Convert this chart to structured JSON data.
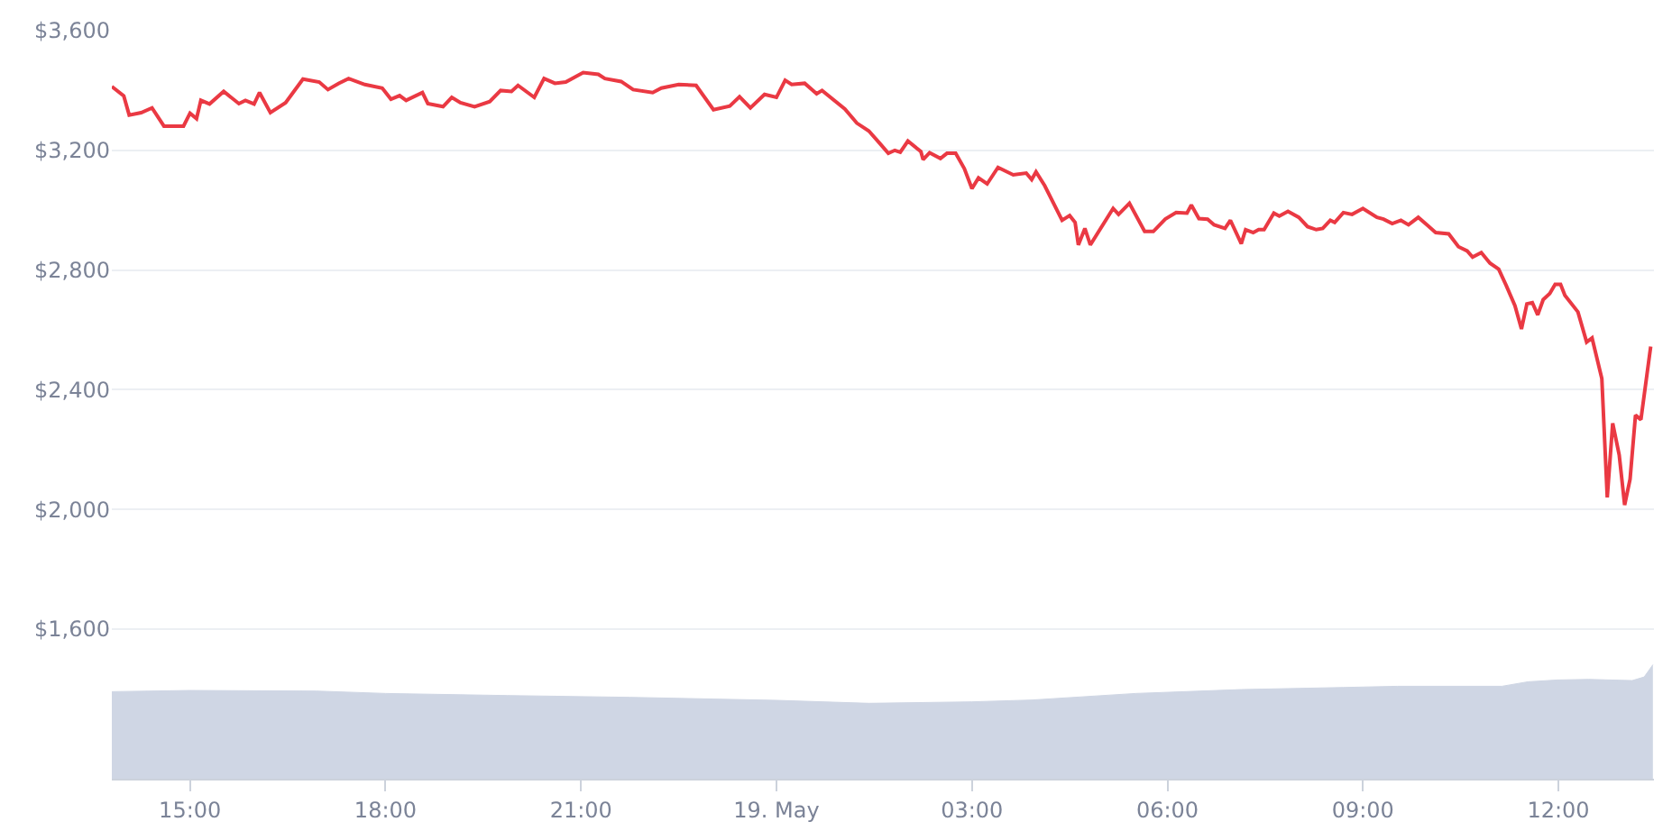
{
  "chart_data": {
    "type": "line",
    "xlim": [
      "--05-18T13:48",
      "--05-19T13:28"
    ],
    "xticks": [
      {
        "value": "--05-18T15:00",
        "label": "15:00"
      },
      {
        "value": "--05-18T18:00",
        "label": "18:00"
      },
      {
        "value": "--05-18T21:00",
        "label": "21:00"
      },
      {
        "value": "--05-19T00:00",
        "label": "19. May"
      },
      {
        "value": "--05-19T03:00",
        "label": "03:00"
      },
      {
        "value": "--05-19T06:00",
        "label": "06:00"
      },
      {
        "value": "--05-19T09:00",
        "label": "09:00"
      },
      {
        "value": "--05-19T12:00",
        "label": "12:00"
      }
    ],
    "ylim": [
      1100,
      3600
    ],
    "yticks": [
      {
        "value": 1600,
        "label": "$1,600"
      },
      {
        "value": 2000,
        "label": "$2,000"
      },
      {
        "value": 2400,
        "label": "$2,400"
      },
      {
        "value": 2800,
        "label": "$2,800"
      },
      {
        "value": 3200,
        "label": "$3,200"
      },
      {
        "value": 3600,
        "label": "$3,600"
      }
    ],
    "grid": "y",
    "marker": "none",
    "line_style": "solid",
    "series": [
      {
        "type": "area",
        "color": "#cfd6e4",
        "x": [
          "--05-18T13:48",
          "--05-18T15:00",
          "--05-18T16:56",
          "--05-18T18:00",
          "--05-18T19:52",
          "--05-18T21:45",
          "--05-19T00:00",
          "--05-19T01:25",
          "--05-19T03:00",
          "--05-19T03:55",
          "--05-19T05:31",
          "--05-19T07:08",
          "--05-19T08:42",
          "--05-19T09:32",
          "--05-19T11:08",
          "--05-19T11:32",
          "--05-19T11:59",
          "--05-19T12:28",
          "--05-19T13:08",
          "--05-19T13:19",
          "--05-19T13:27"
        ],
        "values": [
          1391,
          1395,
          1393,
          1385,
          1378,
          1372,
          1362,
          1352,
          1357,
          1363,
          1385,
          1398,
          1405,
          1409,
          1409,
          1424,
          1430,
          1432,
          1428,
          1440,
          1481
        ]
      },
      {
        "color": "#ea3943",
        "x": [
          "--05-18T13:48",
          "--05-18T13:59",
          "--05-18T14:04",
          "--05-18T14:15",
          "--05-18T14:25",
          "--05-18T14:36",
          "--05-18T14:54",
          "--05-18T15:00",
          "--05-18T15:06",
          "--05-18T15:10",
          "--05-18T15:18",
          "--05-18T15:31",
          "--05-18T15:45",
          "--05-18T15:51",
          "--05-18T15:59",
          "--05-18T16:04",
          "--05-18T16:14",
          "--05-18T16:28",
          "--05-18T16:44",
          "--05-18T16:59",
          "--05-18T17:07",
          "--05-18T17:17",
          "--05-18T17:26",
          "--05-18T17:41",
          "--05-18T17:57",
          "--05-18T18:05",
          "--05-18T18:13",
          "--05-18T18:19",
          "--05-18T18:34",
          "--05-18T18:39",
          "--05-18T18:53",
          "--05-18T19:01",
          "--05-18T19:09",
          "--05-18T19:22",
          "--05-18T19:36",
          "--05-18T19:46",
          "--05-18T19:56",
          "--05-18T20:02",
          "--05-18T20:17",
          "--05-18T20:26",
          "--05-18T20:36",
          "--05-18T20:46",
          "--05-18T21:02",
          "--05-18T21:16",
          "--05-18T21:22",
          "--05-18T21:37",
          "--05-18T21:48",
          "--05-18T22:06",
          "--05-18T22:14",
          "--05-18T22:30",
          "--05-18T22:46",
          "--05-18T23:02",
          "--05-18T23:17",
          "--05-18T23:26",
          "--05-18T23:36",
          "--05-18T23:49",
          "--05-19T00:00",
          "--05-19T00:08",
          "--05-19T00:14",
          "--05-19T00:26",
          "--05-19T00:37",
          "--05-19T00:42",
          "--05-19T01:03",
          "--05-19T01:14",
          "--05-19T01:25",
          "--05-19T01:35",
          "--05-19T01:43",
          "--05-19T01:49",
          "--05-19T01:54",
          "--05-19T02:01",
          "--05-19T02:13",
          "--05-19T02:15",
          "--05-19T02:21",
          "--05-19T02:31",
          "--05-19T02:37",
          "--05-19T02:45",
          "--05-19T02:53",
          "--05-19T03:00",
          "--05-19T03:06",
          "--05-19T03:14",
          "--05-19T03:24",
          "--05-19T03:38",
          "--05-19T03:50",
          "--05-19T03:55",
          "--05-19T03:59",
          "--05-19T04:07",
          "--05-19T04:23",
          "--05-19T04:30",
          "--05-19T04:35",
          "--05-19T04:38",
          "--05-19T04:44",
          "--05-19T04:49",
          "--05-19T05:10",
          "--05-19T05:15",
          "--05-19T05:25",
          "--05-19T05:39",
          "--05-19T05:47",
          "--05-19T05:58",
          "--05-19T06:08",
          "--05-19T06:18",
          "--05-19T06:22",
          "--05-19T06:29",
          "--05-19T06:37",
          "--05-19T06:43",
          "--05-19T06:53",
          "--05-19T06:58",
          "--05-19T07:08",
          "--05-19T07:12",
          "--05-19T07:19",
          "--05-19T07:24",
          "--05-19T07:29",
          "--05-19T07:38",
          "--05-19T07:43",
          "--05-19T07:51",
          "--05-19T08:01",
          "--05-19T08:09",
          "--05-19T08:17",
          "--05-19T08:23",
          "--05-19T08:30",
          "--05-19T08:34",
          "--05-19T08:42",
          "--05-19T08:50",
          "--05-19T09:00",
          "--05-19T09:13",
          "--05-19T09:19",
          "--05-19T09:27",
          "--05-19T09:35",
          "--05-19T09:42",
          "--05-19T09:51",
          "--05-19T09:59",
          "--05-19T10:07",
          "--05-19T10:19",
          "--05-19T10:28",
          "--05-19T10:36",
          "--05-19T10:41",
          "--05-19T10:49",
          "--05-19T10:57",
          "--05-19T11:05",
          "--05-19T11:12",
          "--05-19T11:20",
          "--05-19T11:26",
          "--05-19T11:31",
          "--05-19T11:36",
          "--05-19T11:41",
          "--05-19T11:46",
          "--05-19T11:52",
          "--05-19T11:57",
          "--05-19T12:02",
          "--05-19T12:06",
          "--05-19T12:18",
          "--05-19T12:26",
          "--05-19T12:31",
          "--05-19T12:40",
          "--05-19T12:45",
          "--05-19T12:50",
          "--05-19T12:56",
          "--05-19T13:01",
          "--05-19T13:06",
          "--05-19T13:11",
          "--05-19T13:16",
          "--05-19T13:25"
        ],
        "values": [
          3413,
          3382,
          3318,
          3326,
          3342,
          3281,
          3281,
          3324,
          3306,
          3367,
          3355,
          3397,
          3356,
          3367,
          3355,
          3393,
          3326,
          3359,
          3438,
          3428,
          3403,
          3424,
          3440,
          3420,
          3408,
          3371,
          3383,
          3367,
          3393,
          3356,
          3346,
          3377,
          3359,
          3346,
          3363,
          3400,
          3397,
          3417,
          3377,
          3440,
          3424,
          3428,
          3460,
          3454,
          3440,
          3430,
          3403,
          3393,
          3408,
          3420,
          3417,
          3336,
          3348,
          3379,
          3342,
          3387,
          3377,
          3434,
          3420,
          3424,
          3389,
          3400,
          3338,
          3291,
          3265,
          3224,
          3190,
          3200,
          3194,
          3231,
          3196,
          3169,
          3192,
          3173,
          3190,
          3190,
          3139,
          3072,
          3108,
          3088,
          3143,
          3118,
          3124,
          3102,
          3128,
          3082,
          2966,
          2982,
          2959,
          2884,
          2939,
          2884,
          3006,
          2986,
          3023,
          2929,
          2929,
          2970,
          2992,
          2990,
          3017,
          2972,
          2970,
          2951,
          2939,
          2966,
          2888,
          2935,
          2925,
          2935,
          2935,
          2990,
          2980,
          2996,
          2976,
          2945,
          2935,
          2939,
          2966,
          2959,
          2992,
          2986,
          3006,
          2976,
          2970,
          2955,
          2966,
          2951,
          2976,
          2951,
          2925,
          2921,
          2878,
          2864,
          2843,
          2858,
          2823,
          2803,
          2748,
          2681,
          2603,
          2687,
          2691,
          2650,
          2701,
          2721,
          2752,
          2752,
          2715,
          2660,
          2559,
          2573,
          2437,
          2040,
          2288,
          2182,
          2015,
          2101,
          2315,
          2300,
          2544
        ]
      }
    ]
  }
}
